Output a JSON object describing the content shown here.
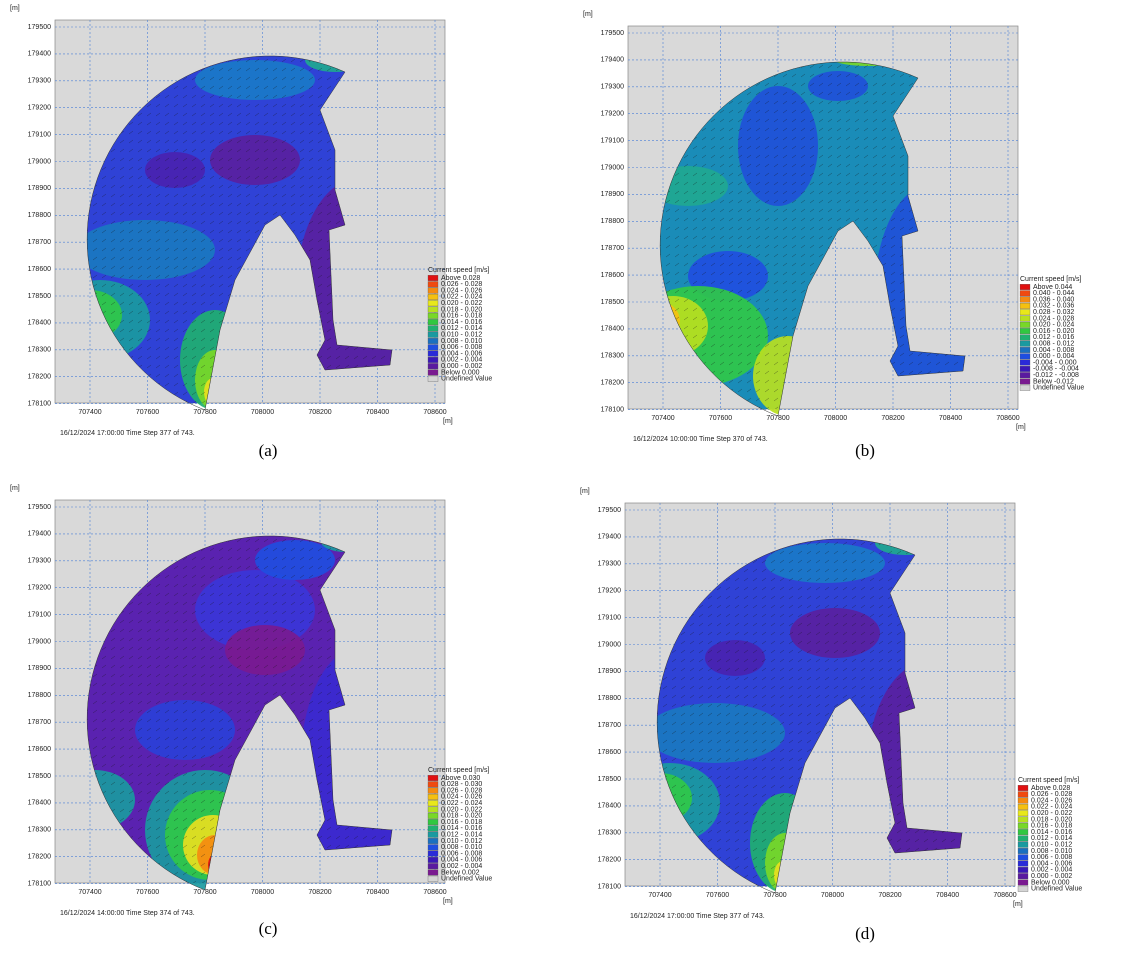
{
  "figure": {
    "panels": [
      {
        "caption": "(a)",
        "y_unit": "[m]",
        "x_unit": "[m]",
        "yticks": [
          179500,
          179400,
          179300,
          179200,
          179100,
          179000,
          178900,
          178800,
          178700,
          178600,
          178500,
          178400,
          178300,
          178200,
          178100
        ],
        "xticks": [
          707400,
          707600,
          707800,
          708000,
          708200,
          708400,
          708600
        ],
        "timestamp": "16/12/2024 17:00:00 Time Step 377 of 743.",
        "legend": {
          "title": "Current speed [m/s]",
          "entries": [
            "Above 0.028",
            "0.026 - 0.028",
            "0.024 - 0.026",
            "0.022 - 0.024",
            "0.020 - 0.022",
            "0.018 - 0.020",
            "0.016 - 0.018",
            "0.014 - 0.016",
            "0.012 - 0.014",
            "0.010 - 0.012",
            "0.008 - 0.010",
            "0.006 - 0.008",
            "0.004 - 0.006",
            "0.002 - 0.004",
            "0.000 - 0.002",
            "Below 0.000",
            "Undefined Value"
          ]
        }
      },
      {
        "caption": "(b)",
        "y_unit": "[m]",
        "x_unit": "[m]",
        "yticks": [
          179500,
          179400,
          179300,
          179200,
          179100,
          179000,
          178900,
          178800,
          178700,
          178600,
          178500,
          178400,
          178300,
          178200,
          178100
        ],
        "xticks": [
          707400,
          707600,
          707800,
          708000,
          708200,
          708400,
          708600
        ],
        "timestamp": "16/12/2024 10:00:00 Time Step 370 of 743.",
        "legend": {
          "title": "Current speed [m/s]",
          "entries": [
            "Above 0.044",
            "0.040 - 0.044",
            "0.036 - 0.040",
            "0.032 - 0.036",
            "0.028 - 0.032",
            "0.024 - 0.028",
            "0.020 - 0.024",
            "0.016 - 0.020",
            "0.012 - 0.016",
            "0.008 - 0.012",
            "0.004 - 0.008",
            "0.000 - 0.004",
            "-0.004 - 0.000",
            "-0.008 - -0.004",
            "-0.012 - -0.008",
            "Below -0.012",
            "Undefined Value"
          ]
        }
      },
      {
        "caption": "(c)",
        "y_unit": "[m]",
        "x_unit": "[m]",
        "yticks": [
          179500,
          179400,
          179300,
          179200,
          179100,
          179000,
          178900,
          178800,
          178700,
          178600,
          178500,
          178400,
          178300,
          178200,
          178100
        ],
        "xticks": [
          707400,
          707600,
          707800,
          708000,
          708200,
          708400,
          708600
        ],
        "timestamp": "16/12/2024 14:00:00 Time Step 374 of 743.",
        "legend": {
          "title": "Current speed [m/s]",
          "entries": [
            "Above 0.030",
            "0.028 - 0.030",
            "0.026 - 0.028",
            "0.024 - 0.026",
            "0.022 - 0.024",
            "0.020 - 0.022",
            "0.018 - 0.020",
            "0.016 - 0.018",
            "0.014 - 0.016",
            "0.012 - 0.014",
            "0.010 - 0.012",
            "0.008 - 0.010",
            "0.006 - 0.008",
            "0.004 - 0.006",
            "0.002 - 0.004",
            "Below 0.002",
            "Undefined Value"
          ]
        }
      },
      {
        "caption": "(d)",
        "y_unit": "[m]",
        "x_unit": "[m]",
        "yticks": [
          179500,
          179400,
          179300,
          179200,
          179100,
          179000,
          178900,
          178800,
          178700,
          178600,
          178500,
          178400,
          178300,
          178200,
          178100
        ],
        "xticks": [
          707400,
          707600,
          707800,
          708000,
          708200,
          708400,
          708600
        ],
        "timestamp": "16/12/2024 17:00:00 Time Step 377 of 743.",
        "legend": {
          "title": "Current speed [m/s]",
          "entries": [
            "Above 0.028",
            "0.026 - 0.028",
            "0.024 - 0.026",
            "0.022 - 0.024",
            "0.020 - 0.022",
            "0.018 - 0.020",
            "0.016 - 0.018",
            "0.014 - 0.016",
            "0.012 - 0.014",
            "0.010 - 0.012",
            "0.008 - 0.010",
            "0.006 - 0.008",
            "0.004 - 0.006",
            "0.002 - 0.004",
            "0.000 - 0.002",
            "Below 0.000",
            "Undefined Value"
          ]
        }
      }
    ]
  }
}
